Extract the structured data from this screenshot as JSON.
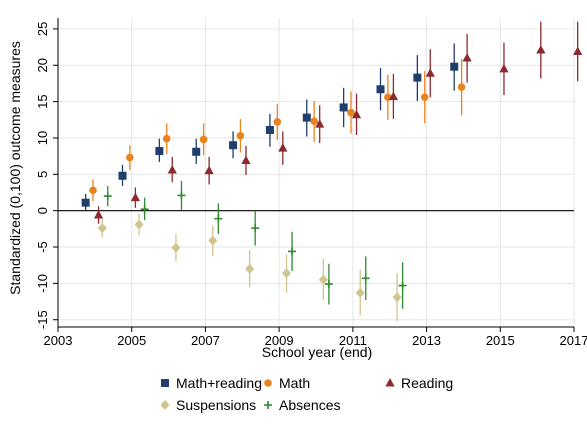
{
  "chart_data": {
    "type": "scatter",
    "title": "",
    "xlabel": "School year (end)",
    "ylabel": "Standardized (0,100) outcome measures",
    "xlim": [
      2003,
      2017
    ],
    "ylim": [
      -16,
      26.5
    ],
    "xticks": [
      2003,
      2005,
      2007,
      2009,
      2011,
      2013,
      2015,
      2017
    ],
    "yticks": [
      -15,
      -10,
      -5,
      0,
      5,
      10,
      15,
      20,
      25
    ],
    "grid": true,
    "legend_position": "bottom",
    "series": [
      {
        "name": "Math+reading",
        "color": "#1f3e6b",
        "marker": "square",
        "points": [
          {
            "x": 2003.75,
            "y": 1.1,
            "lo": 0.0,
            "hi": 2.3
          },
          {
            "x": 2004.75,
            "y": 4.8,
            "lo": 3.4,
            "hi": 6.3
          },
          {
            "x": 2005.75,
            "y": 8.2,
            "lo": 6.7,
            "hi": 9.9
          },
          {
            "x": 2006.75,
            "y": 8.1,
            "lo": 6.4,
            "hi": 9.9
          },
          {
            "x": 2007.75,
            "y": 9.0,
            "lo": 7.2,
            "hi": 10.9
          },
          {
            "x": 2008.75,
            "y": 11.1,
            "lo": 8.8,
            "hi": 13.3
          },
          {
            "x": 2009.75,
            "y": 12.8,
            "lo": 10.2,
            "hi": 15.3
          },
          {
            "x": 2010.75,
            "y": 14.2,
            "lo": 11.5,
            "hi": 16.9
          },
          {
            "x": 2011.75,
            "y": 16.7,
            "lo": 13.8,
            "hi": 19.6
          },
          {
            "x": 2012.75,
            "y": 18.3,
            "lo": 15.1,
            "hi": 21.4
          },
          {
            "x": 2013.75,
            "y": 19.8,
            "lo": 16.5,
            "hi": 23.0
          }
        ]
      },
      {
        "name": "Math",
        "color": "#e8841f",
        "marker": "circle",
        "points": [
          {
            "x": 2003.95,
            "y": 2.8,
            "lo": 1.3,
            "hi": 4.3
          },
          {
            "x": 2004.95,
            "y": 7.3,
            "lo": 5.6,
            "hi": 9.0
          },
          {
            "x": 2005.95,
            "y": 9.9,
            "lo": 7.8,
            "hi": 12.0
          },
          {
            "x": 2006.95,
            "y": 9.8,
            "lo": 7.6,
            "hi": 12.0
          },
          {
            "x": 2007.95,
            "y": 10.3,
            "lo": 8.0,
            "hi": 12.6
          },
          {
            "x": 2008.95,
            "y": 12.2,
            "lo": 9.7,
            "hi": 14.7
          },
          {
            "x": 2009.95,
            "y": 12.3,
            "lo": 9.5,
            "hi": 15.1
          },
          {
            "x": 2010.95,
            "y": 13.5,
            "lo": 10.6,
            "hi": 16.4
          },
          {
            "x": 2011.95,
            "y": 15.6,
            "lo": 12.5,
            "hi": 18.7
          },
          {
            "x": 2012.95,
            "y": 15.6,
            "lo": 12.0,
            "hi": 19.2
          },
          {
            "x": 2013.95,
            "y": 17.0,
            "lo": 13.1,
            "hi": 20.9
          }
        ]
      },
      {
        "name": "Reading",
        "color": "#8e2a2f",
        "marker": "triangle",
        "points": [
          {
            "x": 2004.1,
            "y": -0.6,
            "lo": -1.8,
            "hi": 0.6
          },
          {
            "x": 2005.1,
            "y": 1.8,
            "lo": 0.4,
            "hi": 3.2
          },
          {
            "x": 2006.1,
            "y": 5.6,
            "lo": 3.9,
            "hi": 7.4
          },
          {
            "x": 2007.1,
            "y": 5.5,
            "lo": 3.6,
            "hi": 7.4
          },
          {
            "x": 2008.1,
            "y": 6.9,
            "lo": 4.9,
            "hi": 8.9
          },
          {
            "x": 2009.1,
            "y": 8.6,
            "lo": 6.3,
            "hi": 10.9
          },
          {
            "x": 2010.1,
            "y": 11.9,
            "lo": 9.3,
            "hi": 14.5
          },
          {
            "x": 2011.1,
            "y": 13.2,
            "lo": 10.4,
            "hi": 16.1
          },
          {
            "x": 2012.1,
            "y": 15.7,
            "lo": 12.6,
            "hi": 18.8
          },
          {
            "x": 2013.1,
            "y": 18.9,
            "lo": 15.6,
            "hi": 22.2
          },
          {
            "x": 2014.1,
            "y": 21.0,
            "lo": 17.6,
            "hi": 24.3
          },
          {
            "x": 2015.1,
            "y": 19.5,
            "lo": 15.9,
            "hi": 23.1
          },
          {
            "x": 2016.1,
            "y": 22.1,
            "lo": 18.2,
            "hi": 26.0
          },
          {
            "x": 2017.1,
            "y": 21.9,
            "lo": 17.8,
            "hi": 26.0
          }
        ]
      },
      {
        "name": "Suspensions",
        "color": "#cfc48e",
        "marker": "diamond",
        "points": [
          {
            "x": 2004.2,
            "y": -2.4,
            "lo": -3.7,
            "hi": -1.1
          },
          {
            "x": 2005.2,
            "y": -1.9,
            "lo": -3.4,
            "hi": -0.4
          },
          {
            "x": 2006.2,
            "y": -5.1,
            "lo": -7.0,
            "hi": -3.2
          },
          {
            "x": 2007.2,
            "y": -4.1,
            "lo": -6.2,
            "hi": -2.1
          },
          {
            "x": 2008.2,
            "y": -8.0,
            "lo": -10.5,
            "hi": -5.4
          },
          {
            "x": 2009.2,
            "y": -8.6,
            "lo": -11.3,
            "hi": -6.0
          },
          {
            "x": 2010.2,
            "y": -9.5,
            "lo": -12.3,
            "hi": -6.6
          },
          {
            "x": 2011.2,
            "y": -11.3,
            "lo": -14.4,
            "hi": -8.1
          },
          {
            "x": 2012.2,
            "y": -11.9,
            "lo": -15.2,
            "hi": -8.6
          }
        ]
      },
      {
        "name": "Absences",
        "color": "#2f8a2f",
        "marker": "plus",
        "points": [
          {
            "x": 2004.35,
            "y": 2.0,
            "lo": 0.6,
            "hi": 3.4
          },
          {
            "x": 2005.35,
            "y": 0.2,
            "lo": -1.3,
            "hi": 1.8
          },
          {
            "x": 2006.35,
            "y": 2.1,
            "lo": 0.1,
            "hi": 4.1
          },
          {
            "x": 2007.35,
            "y": -1.1,
            "lo": -3.2,
            "hi": 1.0
          },
          {
            "x": 2008.35,
            "y": -2.4,
            "lo": -4.8,
            "hi": 0.0
          },
          {
            "x": 2009.35,
            "y": -5.6,
            "lo": -8.3,
            "hi": -2.9
          },
          {
            "x": 2010.35,
            "y": -10.1,
            "lo": -12.9,
            "hi": -7.3
          },
          {
            "x": 2011.35,
            "y": -9.3,
            "lo": -12.3,
            "hi": -6.3
          },
          {
            "x": 2012.35,
            "y": -10.3,
            "lo": -13.5,
            "hi": -7.1
          }
        ]
      }
    ]
  }
}
